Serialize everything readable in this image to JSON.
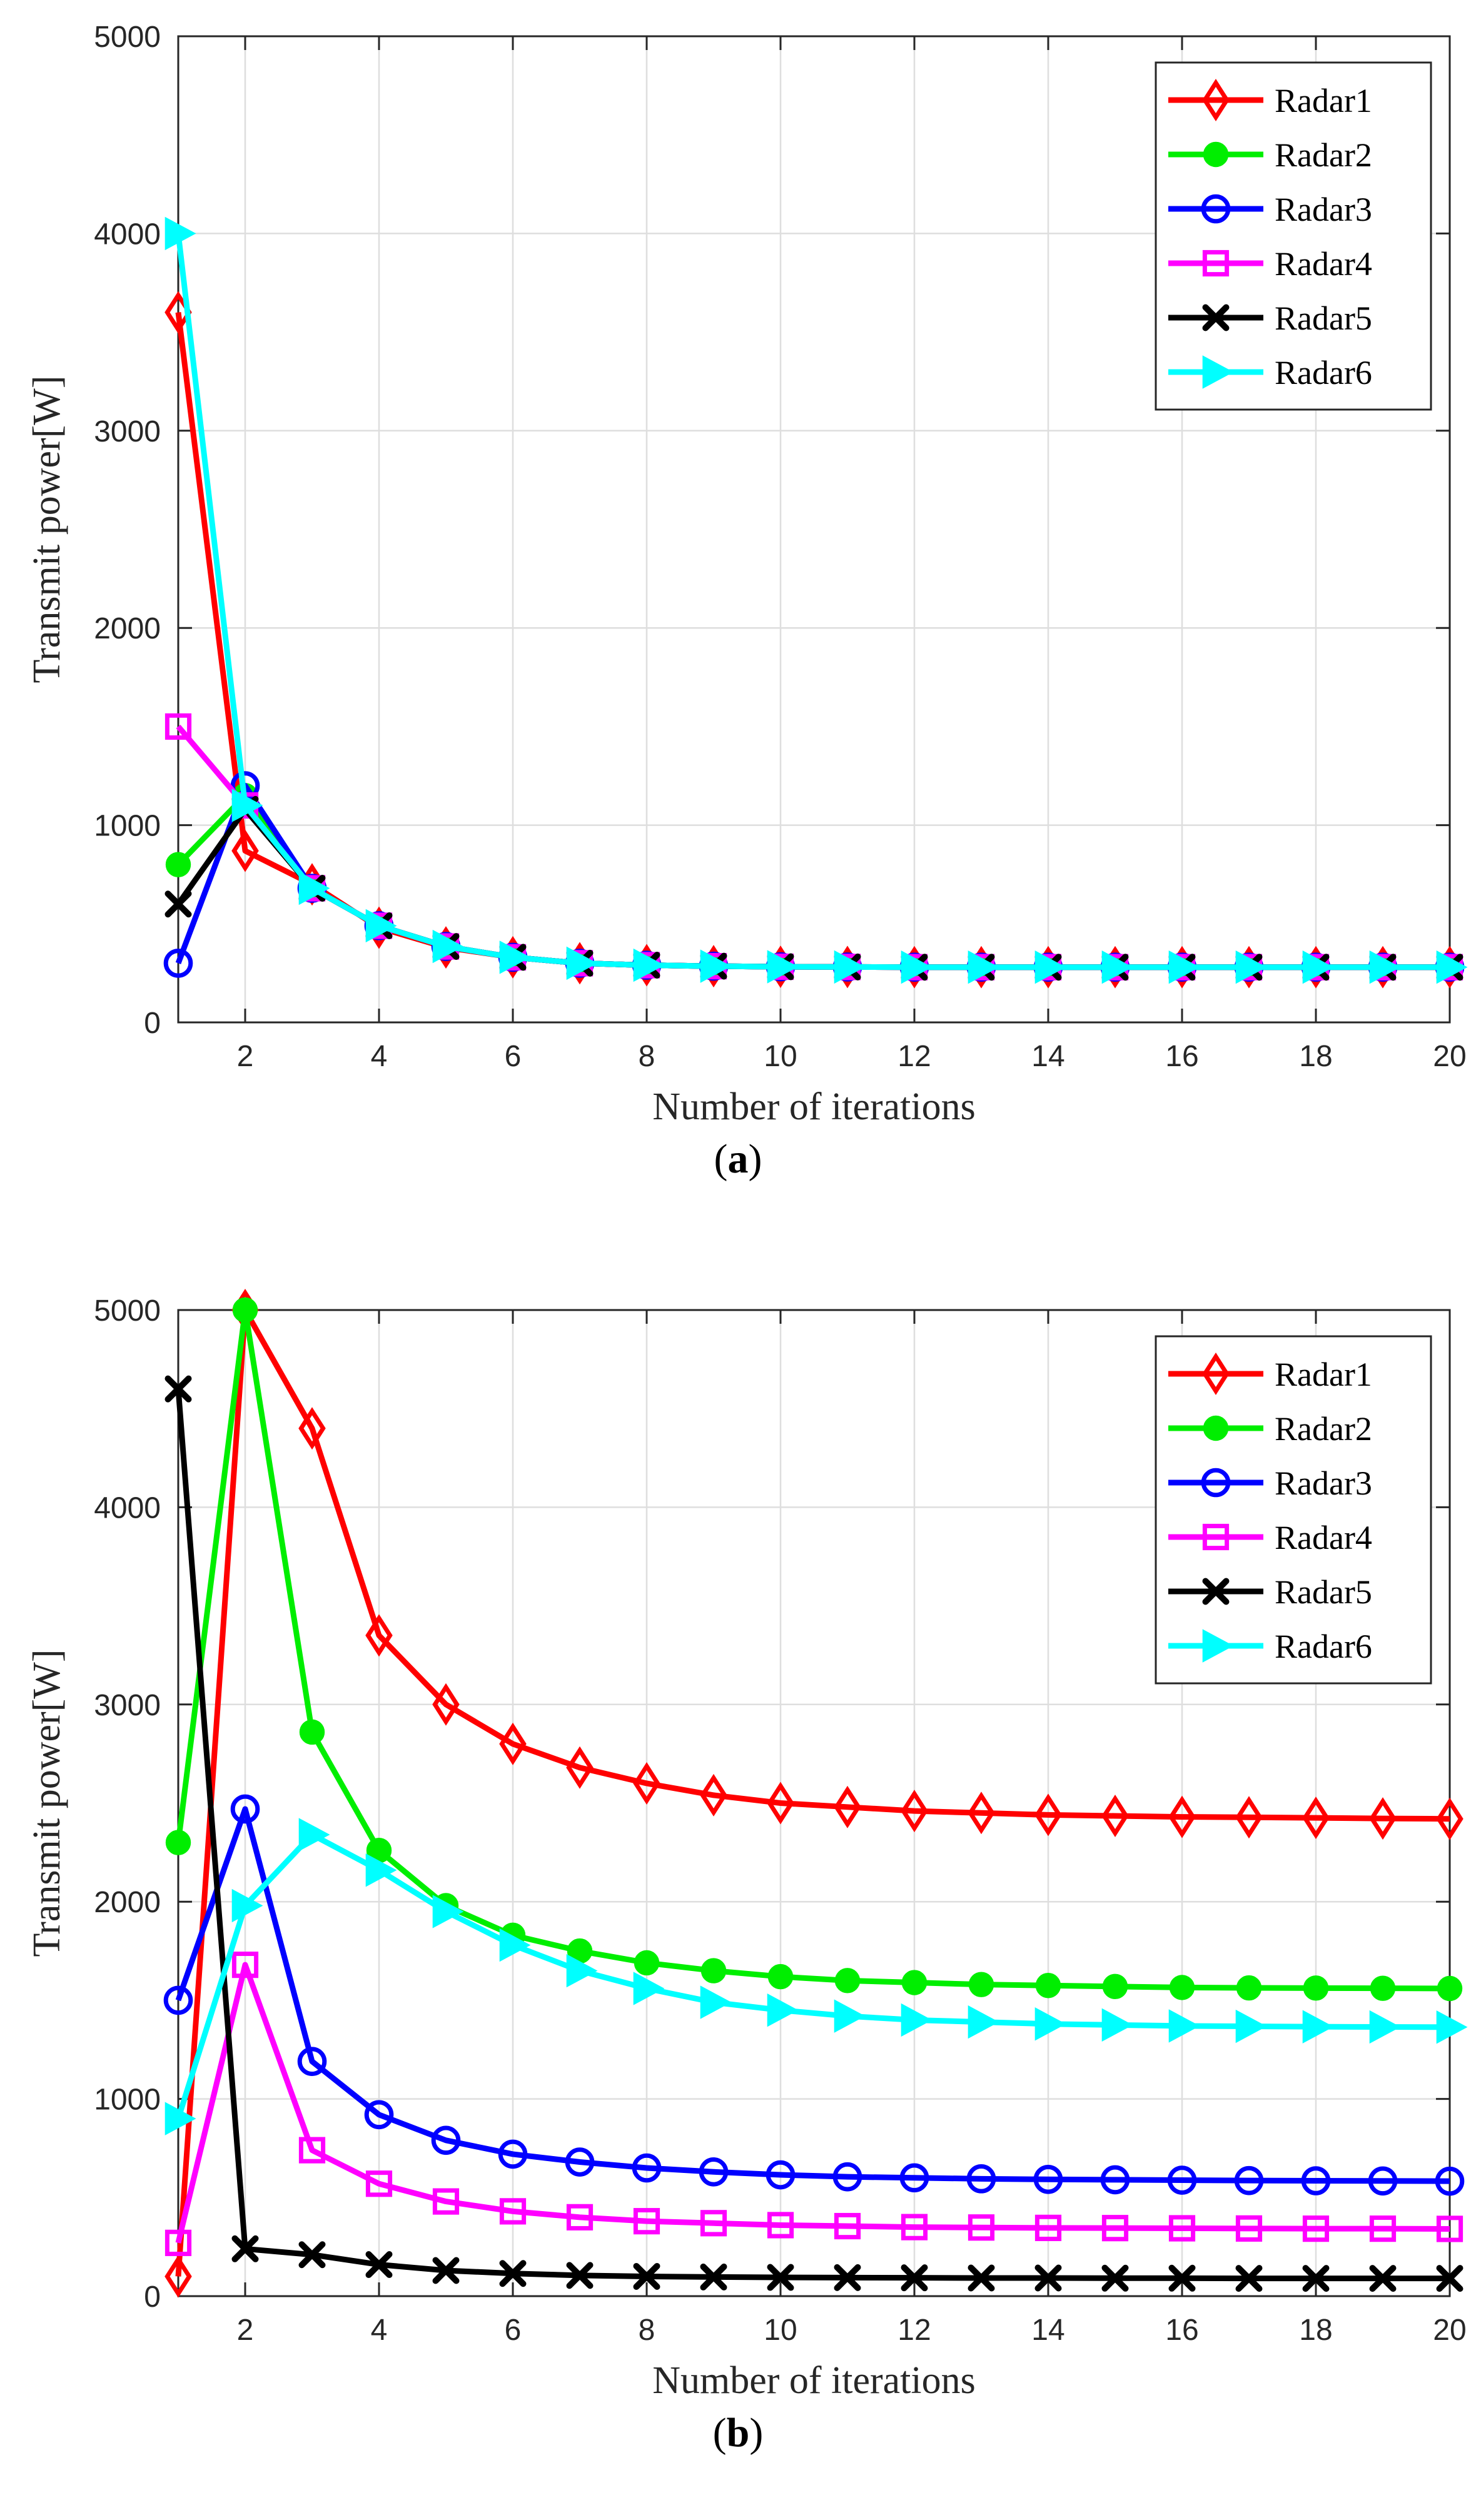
{
  "chart_data": [
    {
      "panel": "a",
      "caption": {
        "open": "(",
        "letter": "a",
        "close": ")"
      },
      "type": "line",
      "xlabel": "Number of iterations",
      "ylabel": "Transmit power[W]",
      "xlim": [
        1,
        20
      ],
      "ylim": [
        0,
        5000
      ],
      "xticks": [
        2,
        4,
        6,
        8,
        10,
        12,
        14,
        16,
        18,
        20
      ],
      "yticks": [
        0,
        1000,
        2000,
        3000,
        4000,
        5000
      ],
      "grid": true,
      "legend_position": "top-right",
      "x": [
        1,
        2,
        3,
        4,
        5,
        6,
        7,
        8,
        9,
        10,
        11,
        12,
        13,
        14,
        15,
        16,
        17,
        18,
        19,
        20
      ],
      "series": [
        {
          "name": "Radar1",
          "color": "#ff0000",
          "marker": "diamond",
          "values": [
            3600,
            870,
            700,
            480,
            380,
            330,
            300,
            290,
            285,
            282,
            281,
            280,
            280,
            280,
            280,
            280,
            280,
            280,
            280,
            280
          ]
        },
        {
          "name": "Radar2",
          "color": "#00ee00",
          "marker": "circle-filled",
          "values": [
            800,
            1150,
            680,
            490,
            385,
            330,
            300,
            290,
            285,
            282,
            281,
            280,
            280,
            280,
            280,
            280,
            280,
            280,
            280,
            280
          ]
        },
        {
          "name": "Radar3",
          "color": "#0000ff",
          "marker": "circle",
          "values": [
            300,
            1200,
            680,
            490,
            385,
            330,
            300,
            290,
            285,
            282,
            281,
            280,
            280,
            280,
            280,
            280,
            280,
            280,
            280,
            280
          ]
        },
        {
          "name": "Radar4",
          "color": "#ff00ff",
          "marker": "square",
          "values": [
            1500,
            1100,
            680,
            490,
            385,
            330,
            300,
            290,
            285,
            282,
            281,
            280,
            280,
            280,
            280,
            280,
            280,
            280,
            280,
            280
          ]
        },
        {
          "name": "Radar5",
          "color": "#000000",
          "marker": "x",
          "values": [
            600,
            1080,
            680,
            490,
            385,
            330,
            300,
            290,
            285,
            282,
            281,
            280,
            280,
            280,
            280,
            280,
            280,
            280,
            280,
            280
          ]
        },
        {
          "name": "Radar6",
          "color": "#00ffff",
          "marker": "triangle-right",
          "values": [
            4000,
            1100,
            680,
            490,
            385,
            330,
            300,
            290,
            285,
            282,
            281,
            280,
            280,
            280,
            280,
            280,
            280,
            280,
            280,
            280
          ]
        }
      ]
    },
    {
      "panel": "b",
      "caption": {
        "open": "(",
        "letter": "b",
        "close": ")"
      },
      "type": "line",
      "xlabel": "Number of iterations",
      "ylabel": "Transmit power[W]",
      "xlim": [
        1,
        20
      ],
      "ylim": [
        0,
        5000
      ],
      "xticks": [
        2,
        4,
        6,
        8,
        10,
        12,
        14,
        16,
        18,
        20
      ],
      "yticks": [
        0,
        1000,
        2000,
        3000,
        4000,
        5000
      ],
      "grid": true,
      "legend_position": "top-right",
      "x": [
        1,
        2,
        3,
        4,
        5,
        6,
        7,
        8,
        9,
        10,
        11,
        12,
        13,
        14,
        15,
        16,
        17,
        18,
        19,
        20
      ],
      "series": [
        {
          "name": "Radar1",
          "color": "#ff0000",
          "marker": "diamond",
          "values": [
            100,
            5000,
            4400,
            3350,
            3000,
            2800,
            2680,
            2600,
            2540,
            2500,
            2480,
            2460,
            2450,
            2440,
            2435,
            2430,
            2428,
            2425,
            2422,
            2420
          ]
        },
        {
          "name": "Radar2",
          "color": "#00ee00",
          "marker": "circle-filled",
          "values": [
            2300,
            5000,
            2860,
            2260,
            1980,
            1830,
            1750,
            1690,
            1650,
            1620,
            1600,
            1590,
            1580,
            1575,
            1570,
            1565,
            1563,
            1562,
            1561,
            1560
          ]
        },
        {
          "name": "Radar3",
          "color": "#0000ff",
          "marker": "circle",
          "values": [
            1500,
            2470,
            1190,
            920,
            790,
            720,
            680,
            650,
            630,
            615,
            605,
            600,
            595,
            592,
            590,
            588,
            586,
            585,
            584,
            583
          ]
        },
        {
          "name": "Radar4",
          "color": "#ff00ff",
          "marker": "square",
          "values": [
            270,
            1680,
            740,
            570,
            480,
            430,
            400,
            380,
            370,
            360,
            355,
            350,
            348,
            346,
            345,
            344,
            343,
            342,
            342,
            341
          ]
        },
        {
          "name": "Radar5",
          "color": "#000000",
          "marker": "x",
          "values": [
            4600,
            240,
            210,
            160,
            130,
            115,
            105,
            100,
            97,
            95,
            94,
            93,
            92,
            92,
            91,
            91,
            90,
            90,
            90,
            90
          ]
        },
        {
          "name": "Radar6",
          "color": "#00ffff",
          "marker": "triangle-right",
          "values": [
            900,
            1980,
            2340,
            2160,
            1950,
            1780,
            1650,
            1560,
            1490,
            1450,
            1420,
            1400,
            1390,
            1380,
            1375,
            1370,
            1368,
            1366,
            1365,
            1364
          ]
        }
      ]
    }
  ]
}
